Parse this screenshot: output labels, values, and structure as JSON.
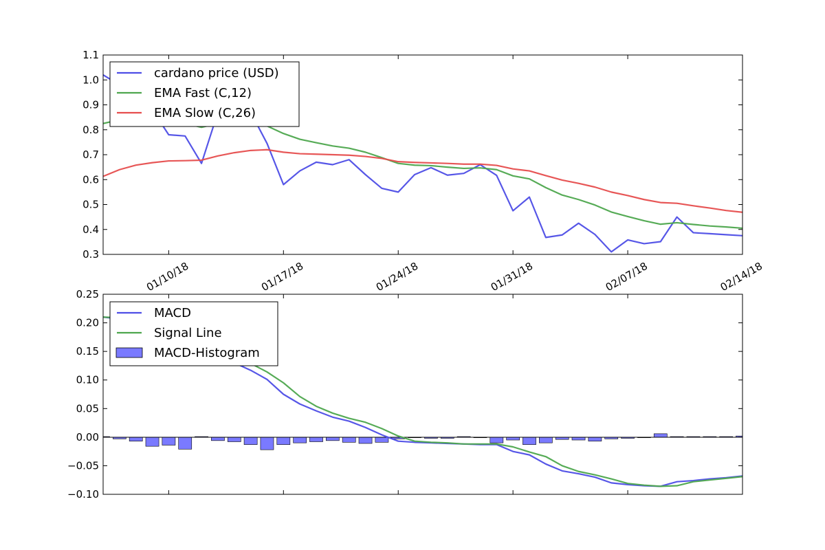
{
  "chart_data": [
    {
      "type": "line",
      "x_ticks": [
        "01/10/18",
        "01/17/18",
        "01/24/18",
        "01/31/18",
        "02/07/18",
        "02/14/18"
      ],
      "x_tick_dates": [
        "2018-01-10",
        "2018-01-17",
        "2018-01-24",
        "2018-01-31",
        "2018-02-07",
        "2018-02-14"
      ],
      "xlim": [
        "2018-01-06",
        "2018-02-14"
      ],
      "ylim": [
        0.3,
        1.1
      ],
      "y_ticks": [
        "0.3",
        "0.4",
        "0.5",
        "0.6",
        "0.7",
        "0.8",
        "0.9",
        "1.0",
        "1.1"
      ],
      "grid": false,
      "legend_position": "upper-left",
      "x": [
        "2018-01-06",
        "2018-01-07",
        "2018-01-08",
        "2018-01-09",
        "2018-01-10",
        "2018-01-11",
        "2018-01-12",
        "2018-01-13",
        "2018-01-14",
        "2018-01-15",
        "2018-01-16",
        "2018-01-17",
        "2018-01-18",
        "2018-01-19",
        "2018-01-20",
        "2018-01-21",
        "2018-01-22",
        "2018-01-23",
        "2018-01-24",
        "2018-01-25",
        "2018-01-26",
        "2018-01-27",
        "2018-01-28",
        "2018-01-29",
        "2018-01-30",
        "2018-01-31",
        "2018-02-01",
        "2018-02-02",
        "2018-02-03",
        "2018-02-04",
        "2018-02-05",
        "2018-02-06",
        "2018-02-07",
        "2018-02-08",
        "2018-02-09",
        "2018-02-10",
        "2018-02-11",
        "2018-02-12",
        "2018-02-13",
        "2018-02-14"
      ],
      "series": [
        {
          "name": "cardano price (USD)",
          "color": "#4d4de6",
          "values": [
            1.02,
            0.98,
            0.93,
            0.88,
            0.78,
            0.775,
            0.665,
            0.87,
            0.875,
            0.87,
            0.745,
            0.58,
            0.635,
            0.67,
            0.66,
            0.68,
            0.62,
            0.565,
            0.55,
            0.62,
            0.648,
            0.618,
            0.625,
            0.66,
            0.617,
            0.475,
            0.53,
            0.368,
            0.378,
            0.425,
            0.38,
            0.31,
            0.358,
            0.343,
            0.351,
            0.45,
            0.387,
            0.383,
            0.379,
            0.375
          ]
        },
        {
          "name": "EMA Fast (C,12)",
          "color": "#4da64d",
          "values": [
            0.825,
            0.84,
            0.85,
            0.845,
            0.835,
            0.825,
            0.81,
            0.825,
            0.835,
            0.84,
            0.815,
            0.785,
            0.762,
            0.748,
            0.735,
            0.726,
            0.71,
            0.688,
            0.665,
            0.658,
            0.656,
            0.65,
            0.645,
            0.647,
            0.64,
            0.615,
            0.603,
            0.568,
            0.538,
            0.52,
            0.498,
            0.47,
            0.452,
            0.435,
            0.421,
            0.427,
            0.42,
            0.414,
            0.41,
            0.405
          ]
        },
        {
          "name": "EMA Slow (C,26)",
          "color": "#e64d4d",
          "values": [
            0.613,
            0.64,
            0.658,
            0.668,
            0.675,
            0.676,
            0.678,
            0.695,
            0.708,
            0.717,
            0.72,
            0.71,
            0.704,
            0.702,
            0.7,
            0.698,
            0.693,
            0.685,
            0.672,
            0.669,
            0.667,
            0.665,
            0.662,
            0.662,
            0.657,
            0.643,
            0.635,
            0.616,
            0.598,
            0.585,
            0.57,
            0.55,
            0.536,
            0.52,
            0.508,
            0.505,
            0.495,
            0.486,
            0.476,
            0.469
          ]
        }
      ]
    },
    {
      "type": "line",
      "xlim": [
        "2018-01-06",
        "2018-02-14"
      ],
      "ylim": [
        -0.1,
        0.25
      ],
      "y_ticks": [
        "−0.10",
        "−0.05",
        "0.00",
        "0.05",
        "0.10",
        "0.15",
        "0.20",
        "0.25"
      ],
      "grid": false,
      "legend_position": "upper-left",
      "x": [
        "2018-01-06",
        "2018-01-07",
        "2018-01-08",
        "2018-01-09",
        "2018-01-10",
        "2018-01-11",
        "2018-01-12",
        "2018-01-13",
        "2018-01-14",
        "2018-01-15",
        "2018-01-16",
        "2018-01-17",
        "2018-01-18",
        "2018-01-19",
        "2018-01-20",
        "2018-01-21",
        "2018-01-22",
        "2018-01-23",
        "2018-01-24",
        "2018-01-25",
        "2018-01-26",
        "2018-01-27",
        "2018-01-28",
        "2018-01-29",
        "2018-01-30",
        "2018-01-31",
        "2018-02-01",
        "2018-02-02",
        "2018-02-03",
        "2018-02-04",
        "2018-02-05",
        "2018-02-06",
        "2018-02-07",
        "2018-02-08",
        "2018-02-09",
        "2018-02-10",
        "2018-02-11",
        "2018-02-12",
        "2018-02-13",
        "2018-02-14"
      ],
      "series": [
        {
          "name": "MACD",
          "color": "#4d4de6",
          "values": [
            0.21,
            0.207,
            0.203,
            0.196,
            0.183,
            0.17,
            0.152,
            0.143,
            0.13,
            0.117,
            0.101,
            0.075,
            0.058,
            0.046,
            0.035,
            0.028,
            0.017,
            0.004,
            -0.007,
            -0.009,
            -0.01,
            -0.011,
            -0.012,
            -0.013,
            -0.013,
            -0.025,
            -0.031,
            -0.047,
            -0.059,
            -0.064,
            -0.07,
            -0.08,
            -0.083,
            -0.085,
            -0.086,
            -0.078,
            -0.076,
            -0.073,
            -0.071,
            -0.068
          ]
        },
        {
          "name": "Signal Line",
          "color": "#4da64d",
          "values": [
            0.21,
            0.209,
            0.207,
            0.204,
            0.197,
            0.188,
            0.175,
            0.162,
            0.146,
            0.129,
            0.114,
            0.095,
            0.071,
            0.054,
            0.042,
            0.033,
            0.026,
            0.015,
            0.002,
            -0.007,
            -0.009,
            -0.01,
            -0.012,
            -0.012,
            -0.012,
            -0.017,
            -0.026,
            -0.034,
            -0.05,
            -0.06,
            -0.066,
            -0.073,
            -0.081,
            -0.084,
            -0.086,
            -0.085,
            -0.078,
            -0.075,
            -0.072,
            -0.069
          ]
        },
        {
          "name": "MACD-Histogram",
          "type": "bar",
          "color": "#4d4dff",
          "values": [
            0.001,
            -0.003,
            -0.007,
            -0.016,
            -0.014,
            -0.021,
            0.001,
            -0.006,
            -0.008,
            -0.013,
            -0.022,
            -0.013,
            -0.01,
            -0.008,
            -0.006,
            -0.009,
            -0.011,
            -0.009,
            -0.003,
            -0.001,
            -0.002,
            -0.002,
            0.001,
            -0.001,
            -0.01,
            -0.005,
            -0.013,
            -0.01,
            -0.004,
            -0.005,
            -0.007,
            -0.003,
            -0.002,
            -0.001,
            0.006,
            0.001,
            0.001,
            0.001,
            0.001,
            0.002
          ]
        }
      ]
    }
  ]
}
